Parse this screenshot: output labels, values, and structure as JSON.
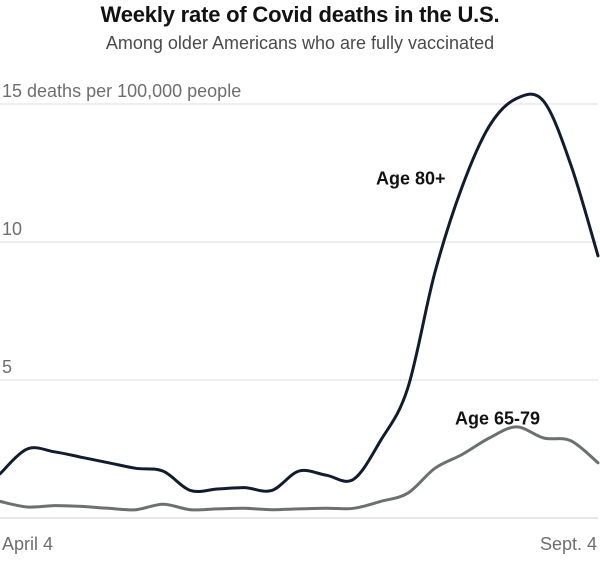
{
  "title": "Weekly rate of Covid deaths in the U.S.",
  "subtitle": "Among older Americans who are fully vaccinated",
  "chart_data": {
    "type": "line",
    "title": "Weekly rate of Covid deaths in the U.S.",
    "subtitle": "Among older Americans who are fully vaccinated",
    "x_start_label": "April 4",
    "x_end_label": "Sept. 4",
    "x": [
      0,
      1,
      2,
      3,
      4,
      5,
      6,
      7,
      8,
      9,
      10,
      11,
      12,
      13,
      14,
      15,
      16,
      17,
      18,
      19,
      20,
      21,
      22
    ],
    "ylim": [
      0,
      15.5
    ],
    "y_ticks": [
      5,
      10,
      15
    ],
    "y_tick_labels": [
      "5",
      "10",
      "15 deaths per 100,000 people"
    ],
    "grid": true,
    "series": [
      {
        "name": "Age 80+",
        "color": "#111d2e",
        "values": [
          1.6,
          2.5,
          2.4,
          2.2,
          2.0,
          1.8,
          1.7,
          1.0,
          1.05,
          1.1,
          1.0,
          1.7,
          1.55,
          1.4,
          2.8,
          4.7,
          8.9,
          12.0,
          14.2,
          15.2,
          15.1,
          12.8,
          9.5
        ]
      },
      {
        "name": "Age 65-79",
        "color": "#6b7070",
        "values": [
          0.6,
          0.4,
          0.45,
          0.42,
          0.35,
          0.3,
          0.5,
          0.3,
          0.33,
          0.35,
          0.3,
          0.33,
          0.35,
          0.35,
          0.6,
          0.9,
          1.8,
          2.3,
          2.9,
          3.3,
          2.9,
          2.8,
          2.0
        ]
      }
    ]
  }
}
